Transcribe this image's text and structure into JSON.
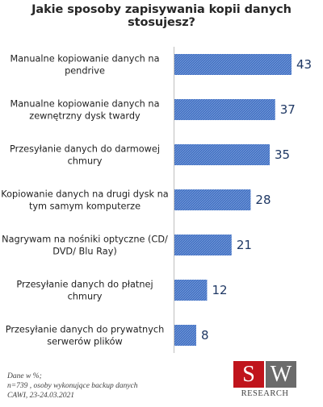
{
  "chart_data": {
    "type": "bar",
    "orientation": "horizontal",
    "title": "Jakie sposoby zapisywania kopii danych stosujesz?",
    "categories": [
      [
        "Manualne kopiowanie danych na",
        "pendrive"
      ],
      [
        "Manualne kopiowanie danych na",
        "zewnętrzny dysk twardy"
      ],
      [
        "Przesyłanie danych do darmowej",
        "chmury"
      ],
      [
        "Kopiowanie danych na drugi dysk na",
        "tym samym komputerze"
      ],
      [
        "Nagrywam na nośniki optyczne (CD/",
        "DVD/ Blu Ray)"
      ],
      [
        "Przesyłanie danych do płatnej",
        "chmury"
      ],
      [
        "Przesyłanie danych do prywatnych",
        "serwerów plików"
      ]
    ],
    "values": [
      43,
      37,
      35,
      28,
      21,
      12,
      8
    ],
    "xlim": [
      0,
      43
    ],
    "grid": false,
    "legend": "none",
    "bar_color": "#4472c4",
    "value_label_color": "#1f3864"
  },
  "notes": [
    "Dane w %;",
    "n=739 , osoby wykonujące backup danych",
    "CAWI, 23-24.03.2021"
  ],
  "logo": {
    "left": "S",
    "right": "W",
    "sub": "RESEARCH",
    "left_color": "#c0141c",
    "right_color": "#6b6b6b"
  }
}
